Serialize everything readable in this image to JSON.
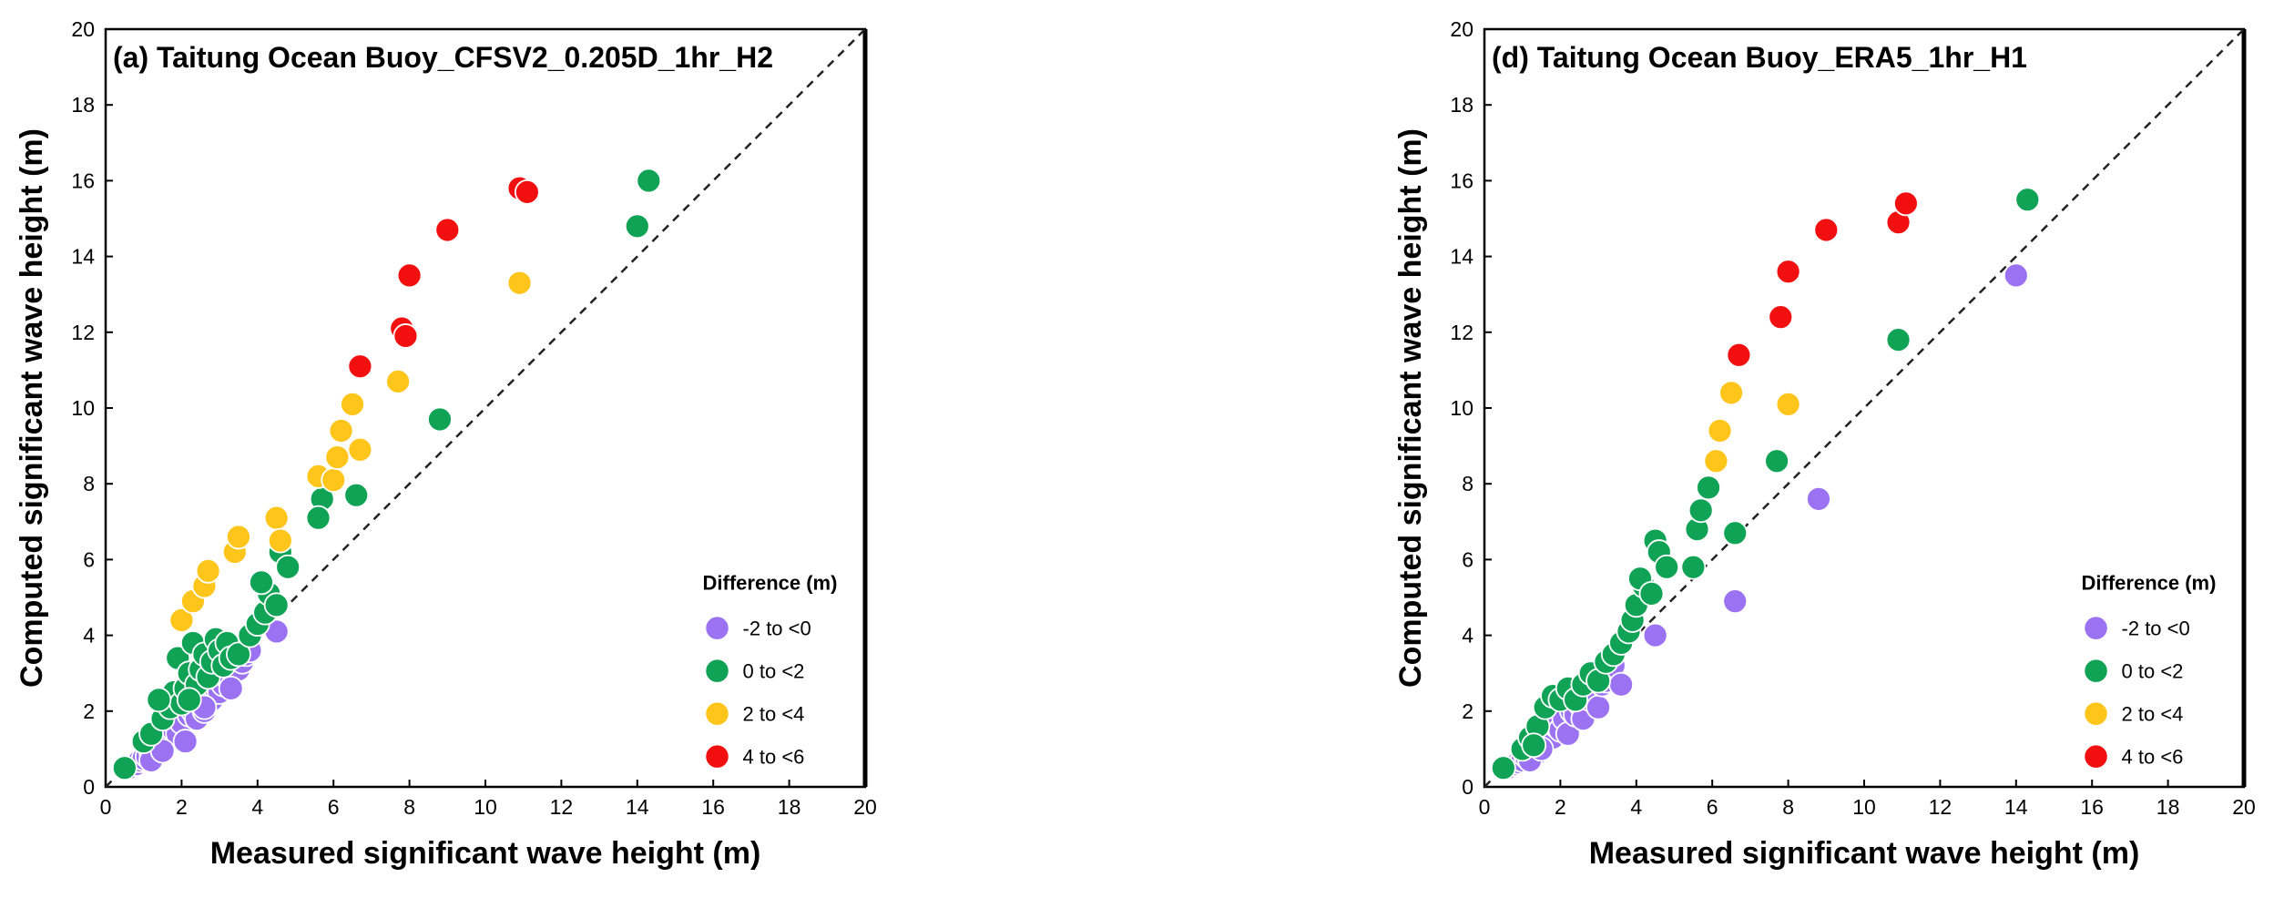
{
  "chart_data": [
    {
      "type": "scatter",
      "title": "(a) Taitung Ocean Buoy_CFSV2_0.205D_1hr_H2",
      "xlabel": "Measured significant wave height (m)",
      "ylabel": "Computed significant wave height (m)",
      "xlim": [
        0,
        20
      ],
      "ylim": [
        0,
        20
      ],
      "xticks": [
        "0",
        "2",
        "4",
        "6",
        "8",
        "10",
        "12",
        "14",
        "16",
        "18",
        "20"
      ],
      "yticks": [
        "0",
        "2",
        "4",
        "6",
        "8",
        "10",
        "12",
        "14",
        "16",
        "18",
        "20"
      ],
      "reference_line": "1:1",
      "legend": {
        "title": "Difference (m)",
        "position": "bottom-right",
        "entries": [
          {
            "label": "-2 to <0",
            "color": "#9B72F2"
          },
          {
            "label": "0 to <2",
            "color": "#10A355"
          },
          {
            "label": "2 to <4",
            "color": "#FFC51A"
          },
          {
            "label": "4 to <6",
            "color": "#F20F0F"
          }
        ]
      },
      "series": [
        {
          "name": "-2 to <0",
          "color": "#9B72F2",
          "points": [
            [
              0.6,
              0.5
            ],
            [
              0.8,
              0.6
            ],
            [
              0.9,
              0.7
            ],
            [
              1.0,
              0.75
            ],
            [
              1.1,
              0.8
            ],
            [
              1.2,
              0.9
            ],
            [
              1.3,
              1.0
            ],
            [
              1.4,
              0.9
            ],
            [
              1.5,
              1.1
            ],
            [
              1.6,
              1.3
            ],
            [
              1.7,
              1.3
            ],
            [
              1.8,
              1.5
            ],
            [
              1.9,
              1.4
            ],
            [
              2.0,
              1.7
            ],
            [
              2.1,
              1.2
            ],
            [
              2.2,
              1.9
            ],
            [
              2.3,
              2.0
            ],
            [
              2.4,
              1.8
            ],
            [
              2.5,
              2.2
            ],
            [
              2.6,
              2.0
            ],
            [
              2.7,
              2.4
            ],
            [
              2.8,
              2.3
            ],
            [
              2.9,
              2.6
            ],
            [
              3.0,
              2.5
            ],
            [
              3.1,
              2.7
            ],
            [
              3.2,
              2.9
            ],
            [
              3.3,
              2.8
            ],
            [
              3.4,
              3.0
            ],
            [
              3.5,
              3.1
            ],
            [
              3.6,
              3.3
            ],
            [
              3.7,
              3.5
            ],
            [
              3.8,
              3.6
            ],
            [
              3.3,
              2.6
            ],
            [
              2.6,
              2.1
            ],
            [
              1.2,
              0.7
            ],
            [
              1.5,
              0.95
            ],
            [
              4.5,
              4.1
            ]
          ]
        },
        {
          "name": "0 to <2",
          "color": "#10A355",
          "points": [
            [
              0.5,
              0.5
            ],
            [
              1.0,
              1.2
            ],
            [
              1.2,
              1.4
            ],
            [
              1.5,
              1.8
            ],
            [
              1.7,
              2.1
            ],
            [
              1.8,
              2.5
            ],
            [
              1.9,
              3.4
            ],
            [
              2.0,
              2.2
            ],
            [
              2.1,
              2.6
            ],
            [
              2.2,
              3.0
            ],
            [
              2.3,
              3.8
            ],
            [
              2.4,
              2.7
            ],
            [
              2.5,
              3.1
            ],
            [
              2.6,
              3.5
            ],
            [
              2.7,
              2.9
            ],
            [
              2.8,
              3.3
            ],
            [
              2.9,
              3.9
            ],
            [
              3.0,
              3.6
            ],
            [
              3.1,
              3.2
            ],
            [
              3.2,
              3.8
            ],
            [
              3.3,
              3.4
            ],
            [
              3.5,
              3.5
            ],
            [
              3.8,
              4.0
            ],
            [
              4.0,
              4.3
            ],
            [
              4.2,
              4.6
            ],
            [
              4.3,
              5.1
            ],
            [
              4.5,
              4.8
            ],
            [
              4.1,
              5.4
            ],
            [
              4.6,
              6.2
            ],
            [
              4.8,
              5.8
            ],
            [
              5.7,
              7.6
            ],
            [
              5.6,
              7.1
            ],
            [
              6.6,
              7.7
            ],
            [
              8.8,
              9.7
            ],
            [
              14.0,
              14.8
            ],
            [
              14.3,
              16.0
            ],
            [
              1.4,
              2.3
            ],
            [
              2.2,
              2.3
            ]
          ]
        },
        {
          "name": "2 to <4",
          "color": "#FFC51A",
          "points": [
            [
              2.0,
              4.4
            ],
            [
              2.3,
              4.9
            ],
            [
              2.6,
              5.3
            ],
            [
              2.7,
              5.7
            ],
            [
              3.4,
              6.2
            ],
            [
              3.5,
              6.6
            ],
            [
              4.5,
              7.1
            ],
            [
              4.6,
              6.5
            ],
            [
              5.6,
              8.2
            ],
            [
              6.0,
              8.1
            ],
            [
              6.1,
              8.7
            ],
            [
              6.2,
              9.4
            ],
            [
              6.5,
              10.1
            ],
            [
              6.7,
              8.9
            ],
            [
              7.7,
              10.7
            ],
            [
              10.9,
              13.3
            ]
          ]
        },
        {
          "name": "4 to <6",
          "color": "#F20F0F",
          "points": [
            [
              6.7,
              11.1
            ],
            [
              7.8,
              12.1
            ],
            [
              7.9,
              11.9
            ],
            [
              8.0,
              13.5
            ],
            [
              9.0,
              14.7
            ],
            [
              10.9,
              15.8
            ],
            [
              11.1,
              15.7
            ]
          ]
        }
      ]
    },
    {
      "type": "scatter",
      "title": "(d) Taitung Ocean Buoy_ERA5_1hr_H1",
      "xlabel": "Measured significant wave height (m)",
      "ylabel": "Computed significant wave height (m)",
      "xlim": [
        0,
        20
      ],
      "ylim": [
        0,
        20
      ],
      "xticks": [
        "0",
        "2",
        "4",
        "6",
        "8",
        "10",
        "12",
        "14",
        "16",
        "18",
        "20"
      ],
      "yticks": [
        "0",
        "2",
        "4",
        "6",
        "8",
        "10",
        "12",
        "14",
        "16",
        "18",
        "20"
      ],
      "reference_line": "1:1",
      "legend": {
        "title": "Difference (m)",
        "position": "bottom-right",
        "entries": [
          {
            "label": "-2 to <0",
            "color": "#9B72F2"
          },
          {
            "label": "0 to <2",
            "color": "#10A355"
          },
          {
            "label": "2 to <4",
            "color": "#FFC51A"
          },
          {
            "label": "4 to <6",
            "color": "#F20F0F"
          }
        ]
      },
      "series": [
        {
          "name": "-2 to <0",
          "color": "#9B72F2",
          "points": [
            [
              0.6,
              0.5
            ],
            [
              0.8,
              0.6
            ],
            [
              0.9,
              0.65
            ],
            [
              1.0,
              0.7
            ],
            [
              1.1,
              0.8
            ],
            [
              1.2,
              0.85
            ],
            [
              1.3,
              1.0
            ],
            [
              1.4,
              0.9
            ],
            [
              1.5,
              1.1
            ],
            [
              1.6,
              1.2
            ],
            [
              1.7,
              1.4
            ],
            [
              1.8,
              1.3
            ],
            [
              1.9,
              1.6
            ],
            [
              2.0,
              1.5
            ],
            [
              2.1,
              1.8
            ],
            [
              2.2,
              1.4
            ],
            [
              2.3,
              2.0
            ],
            [
              2.4,
              1.9
            ],
            [
              2.5,
              2.2
            ],
            [
              2.6,
              1.8
            ],
            [
              2.7,
              2.4
            ],
            [
              2.8,
              2.3
            ],
            [
              2.9,
              2.5
            ],
            [
              3.0,
              2.1
            ],
            [
              3.1,
              2.7
            ],
            [
              3.2,
              2.8
            ],
            [
              3.4,
              3.2
            ],
            [
              3.6,
              2.7
            ],
            [
              1.2,
              0.7
            ],
            [
              1.5,
              1.0
            ],
            [
              4.5,
              4.0
            ],
            [
              6.6,
              4.9
            ],
            [
              8.8,
              7.6
            ],
            [
              14.0,
              13.5
            ]
          ]
        },
        {
          "name": "0 to <2",
          "color": "#10A355",
          "points": [
            [
              0.5,
              0.5
            ],
            [
              1.0,
              1.0
            ],
            [
              1.2,
              1.3
            ],
            [
              1.4,
              1.6
            ],
            [
              1.6,
              2.1
            ],
            [
              1.8,
              2.4
            ],
            [
              2.0,
              2.3
            ],
            [
              2.2,
              2.6
            ],
            [
              2.4,
              2.3
            ],
            [
              2.6,
              2.7
            ],
            [
              2.8,
              3.0
            ],
            [
              3.0,
              2.8
            ],
            [
              3.2,
              3.3
            ],
            [
              3.4,
              3.5
            ],
            [
              3.6,
              3.8
            ],
            [
              3.8,
              4.1
            ],
            [
              3.9,
              4.4
            ],
            [
              4.0,
              4.8
            ],
            [
              4.2,
              5.3
            ],
            [
              4.1,
              5.5
            ],
            [
              4.4,
              5.1
            ],
            [
              4.5,
              6.5
            ],
            [
              4.6,
              6.2
            ],
            [
              4.8,
              5.8
            ],
            [
              5.5,
              5.8
            ],
            [
              5.6,
              6.8
            ],
            [
              5.7,
              7.3
            ],
            [
              5.9,
              7.9
            ],
            [
              6.6,
              6.7
            ],
            [
              7.7,
              8.6
            ],
            [
              10.9,
              11.8
            ],
            [
              14.3,
              15.5
            ],
            [
              1.3,
              1.1
            ]
          ]
        },
        {
          "name": "2 to <4",
          "color": "#FFC51A",
          "points": [
            [
              6.1,
              8.6
            ],
            [
              6.2,
              9.4
            ],
            [
              6.5,
              10.4
            ],
            [
              6.7,
              11.4
            ],
            [
              8.0,
              10.1
            ]
          ]
        },
        {
          "name": "4 to <6",
          "color": "#F20F0F",
          "points": [
            [
              6.7,
              11.4
            ],
            [
              7.8,
              12.4
            ],
            [
              8.0,
              13.6
            ],
            [
              9.0,
              14.7
            ],
            [
              10.9,
              14.9
            ],
            [
              11.1,
              15.4
            ]
          ]
        }
      ]
    }
  ]
}
